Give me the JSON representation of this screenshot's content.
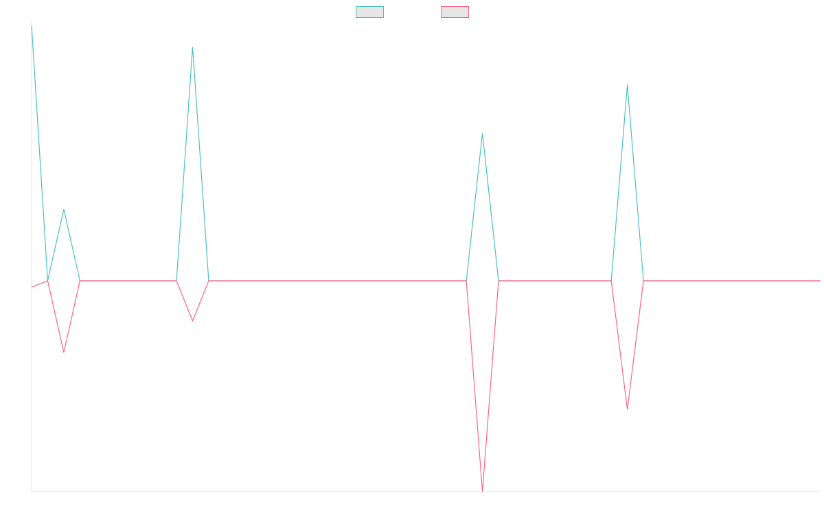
{
  "chart_data": {
    "type": "line",
    "x_count": 50,
    "x": [
      0,
      1,
      2,
      3,
      4,
      5,
      6,
      7,
      8,
      9,
      10,
      11,
      12,
      13,
      14,
      15,
      16,
      17,
      18,
      19,
      20,
      21,
      22,
      23,
      24,
      25,
      26,
      27,
      28,
      29,
      30,
      31,
      32,
      33,
      34,
      35,
      36,
      37,
      38,
      39,
      40,
      41,
      42,
      43,
      44,
      45,
      46,
      47,
      48,
      49
    ],
    "ylim": [
      -100,
      100
    ],
    "grid": false,
    "legend_position": "top-center",
    "series": [
      {
        "name": "",
        "color": "#4bc0c0",
        "fill": "#e6e6e6",
        "values": [
          121,
          0,
          34,
          0,
          0,
          0,
          0,
          0,
          0,
          0,
          111,
          0,
          0,
          0,
          0,
          0,
          0,
          0,
          0,
          0,
          0,
          0,
          0,
          0,
          0,
          0,
          0,
          0,
          70,
          0,
          0,
          0,
          0,
          0,
          0,
          0,
          0,
          93,
          0,
          0,
          0,
          0,
          0,
          0,
          0,
          0,
          0,
          0,
          0,
          0
        ]
      },
      {
        "name": "",
        "color": "#ff6384",
        "fill": "#e6e6e6",
        "values": [
          -3,
          0,
          -34,
          0,
          0,
          0,
          0,
          0,
          0,
          0,
          -19,
          0,
          0,
          0,
          0,
          0,
          0,
          0,
          0,
          0,
          0,
          0,
          0,
          0,
          0,
          0,
          0,
          0,
          -100,
          0,
          0,
          0,
          0,
          0,
          0,
          0,
          0,
          -61,
          0,
          0,
          0,
          0,
          0,
          0,
          0,
          0,
          0,
          0,
          0,
          0
        ]
      }
    ]
  }
}
